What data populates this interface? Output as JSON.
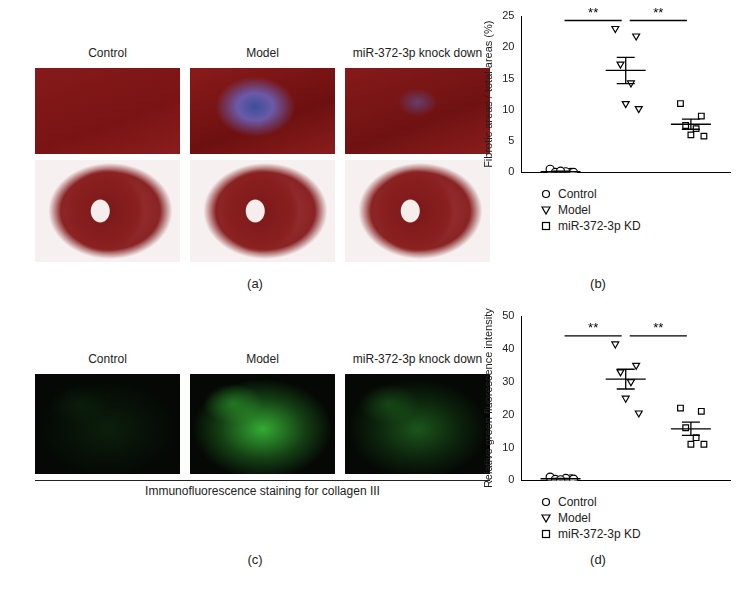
{
  "panels": {
    "a": {
      "label": "(a)",
      "captions": [
        "Control",
        "Model",
        "miR-372-3p knock down"
      ]
    },
    "c": {
      "label": "(c)",
      "captions": [
        "Control",
        "Model",
        "miR-372-3p knock down"
      ],
      "caption": "Immunofluorescence staining for collagen III"
    }
  },
  "chart_data": [
    {
      "label": "(b)",
      "type": "scatter",
      "y_label": "Fibrotic areas / total areas (%)",
      "ylim": [
        0,
        25
      ],
      "yticks": [
        0,
        5,
        10,
        15,
        20,
        25
      ],
      "grid": false,
      "tick_labels": "y",
      "legend": "bottom-left",
      "series": [
        {
          "name": "Control",
          "marker": "circle",
          "color": "#000000",
          "values": [
            0.5,
            0,
            0,
            0.1,
            0.2,
            0
          ],
          "mean": 0.13,
          "error": 0.08
        },
        {
          "name": "Model",
          "marker": "triangle-down",
          "color": "#000000",
          "values": [
            23,
            21.8,
            17.3,
            14.3,
            11,
            10.2
          ],
          "mean": 16.3,
          "error": 2.1
        },
        {
          "name": "miR-372-3p KD",
          "marker": "square",
          "color": "#000000",
          "values": [
            11,
            9,
            7.5,
            7,
            6,
            5.8
          ],
          "mean": 7.7,
          "error": 0.8
        }
      ],
      "annotations": [
        {
          "text": "**",
          "between": [
            "Control",
            "Model"
          ]
        },
        {
          "text": "**",
          "between": [
            "Model",
            "miR-372-3p KD"
          ]
        }
      ]
    },
    {
      "label": "(d)",
      "type": "scatter",
      "y_label": "Relative green fluorescence intensity",
      "ylim": [
        0,
        50
      ],
      "yticks": [
        0,
        10,
        20,
        30,
        40,
        50
      ],
      "grid": false,
      "tick_labels": "y",
      "legend": "bottom-left",
      "series": [
        {
          "name": "Control",
          "marker": "circle",
          "color": "#000000",
          "values": [
            1,
            0.5,
            0.3,
            0.6,
            0.2,
            0.4
          ],
          "mean": 0.5,
          "error": 0.12
        },
        {
          "name": "Model",
          "marker": "triangle-down",
          "color": "#000000",
          "values": [
            41.5,
            35,
            33,
            30,
            25,
            20.5
          ],
          "mean": 30.8,
          "error": 3.0
        },
        {
          "name": "miR-372-3p KD",
          "marker": "square",
          "color": "#000000",
          "values": [
            22,
            21,
            16,
            13,
            11,
            11
          ],
          "mean": 15.7,
          "error": 2.0
        }
      ],
      "annotations": [
        {
          "text": "**",
          "between": [
            "Control",
            "Model"
          ]
        },
        {
          "text": "**",
          "between": [
            "Model",
            "miR-372-3p KD"
          ]
        }
      ]
    }
  ]
}
